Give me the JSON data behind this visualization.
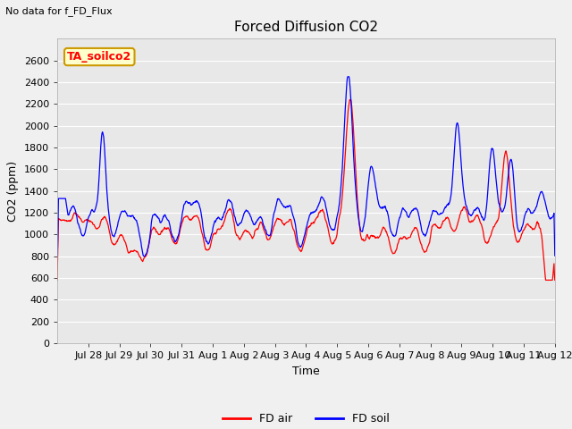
{
  "title": "Forced Diffusion CO2",
  "top_left_text": "No data for f_FD_Flux",
  "annotation_box": "TA_soilco2",
  "xlabel": "Time",
  "ylabel": "CO2 (ppm)",
  "ylim": [
    0,
    2800
  ],
  "yticks": [
    0,
    200,
    400,
    600,
    800,
    1000,
    1200,
    1400,
    1600,
    1800,
    2000,
    2200,
    2400,
    2600
  ],
  "fig_bg_color": "#f0f0f0",
  "plot_bg_color": "#e8e8e8",
  "line_red": "red",
  "line_blue": "blue",
  "legend_labels": [
    "FD air",
    "FD soil"
  ],
  "tick_labels": [
    "Jul 28",
    "Jul 29",
    "Jul 30",
    "Jul 31",
    "Aug 1",
    "Aug 2",
    "Aug 3",
    "Aug 4",
    "Aug 5",
    "Aug 6",
    "Aug 7",
    "Aug 8",
    "Aug 9",
    "Aug 10",
    "Aug 11",
    "Aug 12"
  ]
}
